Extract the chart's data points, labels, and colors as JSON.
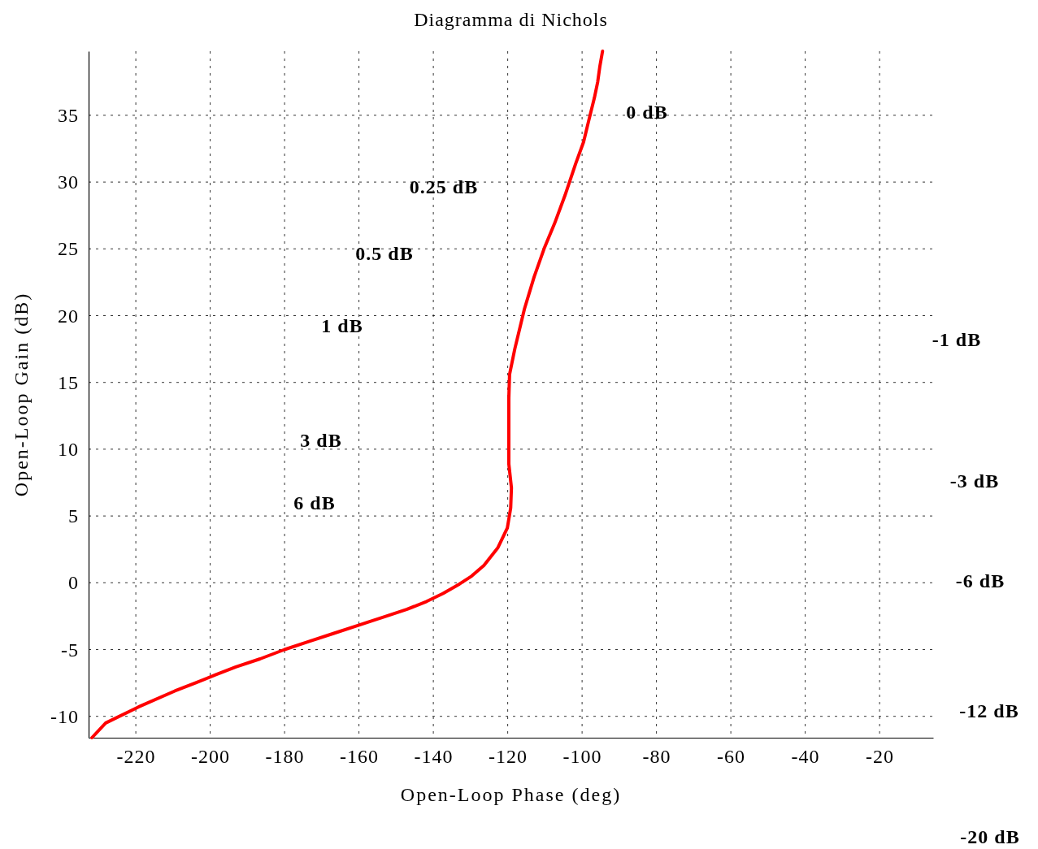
{
  "chart_data": {
    "type": "line",
    "title": "Diagramma di Nichols",
    "xlabel": "Open-Loop Phase (deg)",
    "ylabel": "Open-Loop Gain (dB)",
    "xlim": [
      -232.7,
      -5.6
    ],
    "ylim": [
      -11.6,
      39.8
    ],
    "xticks": [
      -220,
      -200,
      -180,
      -160,
      -140,
      -120,
      -100,
      -80,
      -60,
      -40,
      -20
    ],
    "yticks": [
      -10,
      -5,
      0,
      5,
      10,
      15,
      20,
      25,
      30,
      35
    ],
    "grid": true,
    "line_style": "solid",
    "marker": "none",
    "series": [
      {
        "color": "#ff0000",
        "x": [
          -94.5,
          -95.2,
          -95.8,
          -96.7,
          -98.3,
          -99.6,
          -101.7,
          -104.6,
          -107.4,
          -110.1,
          -112.9,
          -115.5,
          -118.1,
          -119.5,
          -119.7,
          -119.7,
          -119.0,
          -119.2,
          -120.1,
          -122.7,
          -126.4,
          -129.7,
          -133.0,
          -137.4,
          -141.8,
          -147.2,
          -153.8,
          -160.3,
          -166.9,
          -173.5,
          -180.0,
          -186.6,
          -193.1,
          -198.6,
          -204.0,
          -209.5,
          -219.3,
          -228.1,
          -231.8
        ],
        "values": [
          39.8,
          38.7,
          37.5,
          36.3,
          34.5,
          33.0,
          31.4,
          29.0,
          26.9,
          25.1,
          22.9,
          20.5,
          17.5,
          15.6,
          13.8,
          8.9,
          7.1,
          5.6,
          4.1,
          2.6,
          1.3,
          0.5,
          -0.1,
          -0.8,
          -1.4,
          -2.0,
          -2.6,
          -3.2,
          -3.8,
          -4.4,
          -5.0,
          -5.7,
          -6.3,
          -6.9,
          -7.5,
          -8.1,
          -9.3,
          -10.5,
          -11.6
        ]
      }
    ],
    "annotations": [
      "0 dB",
      "0.25 dB",
      "0.5 dB",
      "1 dB",
      "3 dB",
      "6 dB",
      "-1 dB",
      "-3 dB",
      "-6 dB",
      "-12 dB",
      "-20 dB"
    ]
  }
}
